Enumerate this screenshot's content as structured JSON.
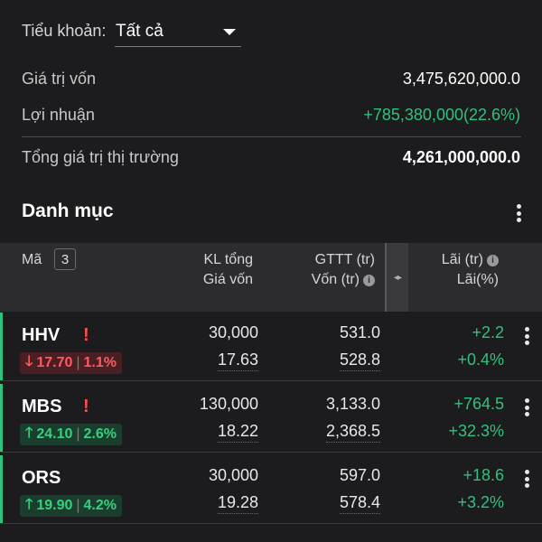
{
  "summary": {
    "account_label": "Tiểu khoản:",
    "account_value": "Tất cả",
    "capital_label": "Giá trị vốn",
    "capital_value": "3,475,620,000.0",
    "profit_label": "Lợi nhuận",
    "profit_value": "+785,380,000(22.6%)",
    "market_label": "Tổng giá trị thị trường",
    "market_value": "4,261,000,000.0"
  },
  "portfolio": {
    "title": "Danh mục",
    "count": "3",
    "headers": {
      "code": "Mã",
      "vol_total": "KL tổng",
      "avg_price": "Giá vốn",
      "mkt_value": "GTTT (tr)",
      "cost": "Vốn (tr)",
      "pnl": "Lãi (tr)",
      "pnl_pct": "Lãi(%)"
    },
    "rows": [
      {
        "symbol": "HHV",
        "warning": "!",
        "direction": "down",
        "price": "17.70",
        "change": "1.1%",
        "volume": "30,000",
        "avg_price": "17.63",
        "market_value": "531.0",
        "cost": "528.8",
        "pnl": "+2.2",
        "pnl_pct": "+0.4%"
      },
      {
        "symbol": "MBS",
        "warning": "!",
        "direction": "up",
        "price": "24.10",
        "change": "2.6%",
        "volume": "130,000",
        "avg_price": "18.22",
        "market_value": "3,133.0",
        "cost": "2,368.5",
        "pnl": "+764.5",
        "pnl_pct": "+32.3%"
      },
      {
        "symbol": "ORS",
        "warning": "",
        "direction": "up",
        "price": "19.90",
        "change": "4.2%",
        "volume": "30,000",
        "avg_price": "19.28",
        "market_value": "597.0",
        "cost": "578.4",
        "pnl": "+18.6",
        "pnl_pct": "+3.2%"
      }
    ]
  },
  "icons": {
    "down_arrow": "arrow-down-icon",
    "up_arrow": "arrow-up-icon",
    "menu": "kebab-menu-icon",
    "info": "info-icon",
    "dropdown": "chevron-down-icon"
  },
  "colors": {
    "background": "#1c1c1e",
    "positive": "#2ec27e",
    "negative": "#ff5a5f"
  }
}
